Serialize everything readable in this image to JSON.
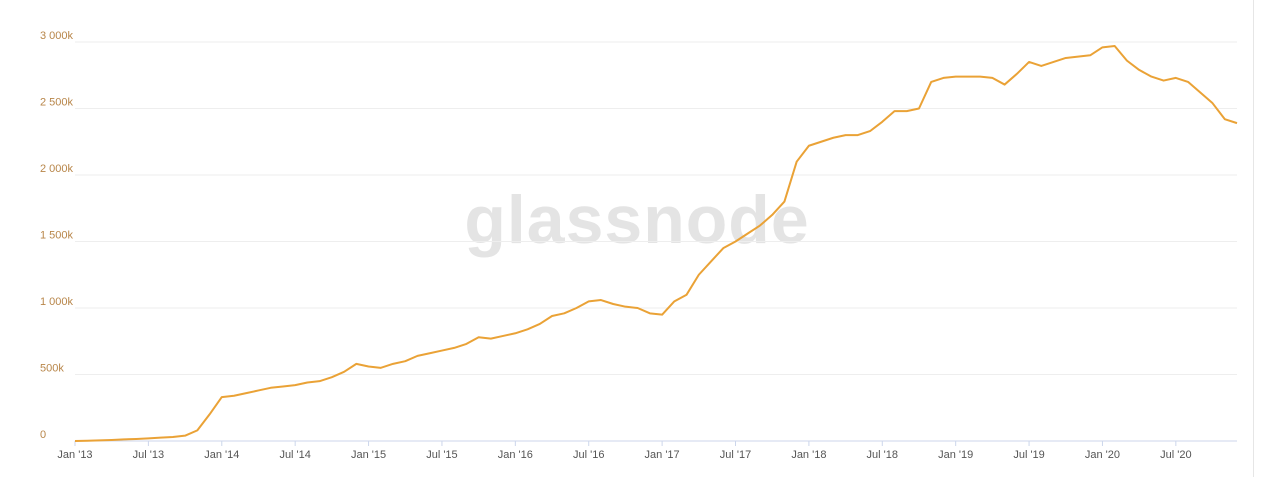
{
  "chart_data": {
    "type": "line",
    "watermark": "glassnode",
    "x": [
      "2013-01",
      "2013-02",
      "2013-03",
      "2013-04",
      "2013-05",
      "2013-06",
      "2013-07",
      "2013-08",
      "2013-09",
      "2013-10",
      "2013-11",
      "2013-12",
      "2014-01",
      "2014-02",
      "2014-03",
      "2014-04",
      "2014-05",
      "2014-06",
      "2014-07",
      "2014-08",
      "2014-09",
      "2014-10",
      "2014-11",
      "2014-12",
      "2015-01",
      "2015-02",
      "2015-03",
      "2015-04",
      "2015-05",
      "2015-06",
      "2015-07",
      "2015-08",
      "2015-09",
      "2015-10",
      "2015-11",
      "2015-12",
      "2016-01",
      "2016-02",
      "2016-03",
      "2016-04",
      "2016-05",
      "2016-06",
      "2016-07",
      "2016-08",
      "2016-09",
      "2016-10",
      "2016-11",
      "2016-12",
      "2017-01",
      "2017-02",
      "2017-03",
      "2017-04",
      "2017-05",
      "2017-06",
      "2017-07",
      "2017-08",
      "2017-09",
      "2017-10",
      "2017-11",
      "2017-12",
      "2018-01",
      "2018-02",
      "2018-03",
      "2018-04",
      "2018-05",
      "2018-06",
      "2018-07",
      "2018-08",
      "2018-09",
      "2018-10",
      "2018-11",
      "2018-12",
      "2019-01",
      "2019-02",
      "2019-03",
      "2019-04",
      "2019-05",
      "2019-06",
      "2019-07",
      "2019-08",
      "2019-09",
      "2019-10",
      "2019-11",
      "2019-12",
      "2020-01",
      "2020-02",
      "2020-03",
      "2020-04",
      "2020-05",
      "2020-06",
      "2020-07",
      "2020-08",
      "2020-09",
      "2020-10",
      "2020-11",
      "2020-12"
    ],
    "series": [
      {
        "color": "#eaa236",
        "values": [
          0,
          2000,
          5000,
          8000,
          12000,
          15000,
          20000,
          25000,
          30000,
          40000,
          80000,
          200000,
          330000,
          340000,
          360000,
          380000,
          400000,
          410000,
          420000,
          440000,
          450000,
          480000,
          520000,
          580000,
          560000,
          550000,
          580000,
          600000,
          640000,
          660000,
          680000,
          700000,
          730000,
          780000,
          770000,
          790000,
          810000,
          840000,
          880000,
          940000,
          960000,
          1000000,
          1050000,
          1060000,
          1030000,
          1010000,
          1000000,
          960000,
          950000,
          1050000,
          1100000,
          1250000,
          1350000,
          1450000,
          1500000,
          1560000,
          1620000,
          1700000,
          1800000,
          2100000,
          2220000,
          2250000,
          2280000,
          2300000,
          2300000,
          2330000,
          2400000,
          2480000,
          2480000,
          2500000,
          2700000,
          2730000,
          2740000,
          2740000,
          2740000,
          2730000,
          2680000,
          2760000,
          2850000,
          2820000,
          2850000,
          2880000,
          2890000,
          2900000,
          2960000,
          2970000,
          2860000,
          2790000,
          2740000,
          2710000,
          2730000,
          2700000,
          2620000,
          2540000,
          2420000,
          2390000
        ]
      }
    ],
    "xlim": [
      "2013-01",
      "2020-12"
    ],
    "xticks": [
      {
        "value": "2013-01",
        "label": "Jan '13"
      },
      {
        "value": "2013-07",
        "label": "Jul '13"
      },
      {
        "value": "2014-01",
        "label": "Jan '14"
      },
      {
        "value": "2014-07",
        "label": "Jul '14"
      },
      {
        "value": "2015-01",
        "label": "Jan '15"
      },
      {
        "value": "2015-07",
        "label": "Jul '15"
      },
      {
        "value": "2016-01",
        "label": "Jan '16"
      },
      {
        "value": "2016-07",
        "label": "Jul '16"
      },
      {
        "value": "2017-01",
        "label": "Jan '17"
      },
      {
        "value": "2017-07",
        "label": "Jul '17"
      },
      {
        "value": "2018-01",
        "label": "Jan '18"
      },
      {
        "value": "2018-07",
        "label": "Jul '18"
      },
      {
        "value": "2019-01",
        "label": "Jan '19"
      },
      {
        "value": "2019-07",
        "label": "Jul '19"
      },
      {
        "value": "2020-01",
        "label": "Jan '20"
      },
      {
        "value": "2020-07",
        "label": "Jul '20"
      }
    ],
    "ylim": [
      0,
      3000000
    ],
    "yticks": [
      0,
      {
        "value": 500000,
        "label": "500k"
      },
      {
        "value": 1000000,
        "label": "1 000k"
      },
      {
        "value": 1500000,
        "label": "1 500k"
      },
      {
        "value": 2000000,
        "label": "2 000k"
      },
      {
        "value": 2500000,
        "label": "2 500k"
      },
      {
        "value": 3000000,
        "label": "3 000k"
      }
    ],
    "grid": true
  }
}
